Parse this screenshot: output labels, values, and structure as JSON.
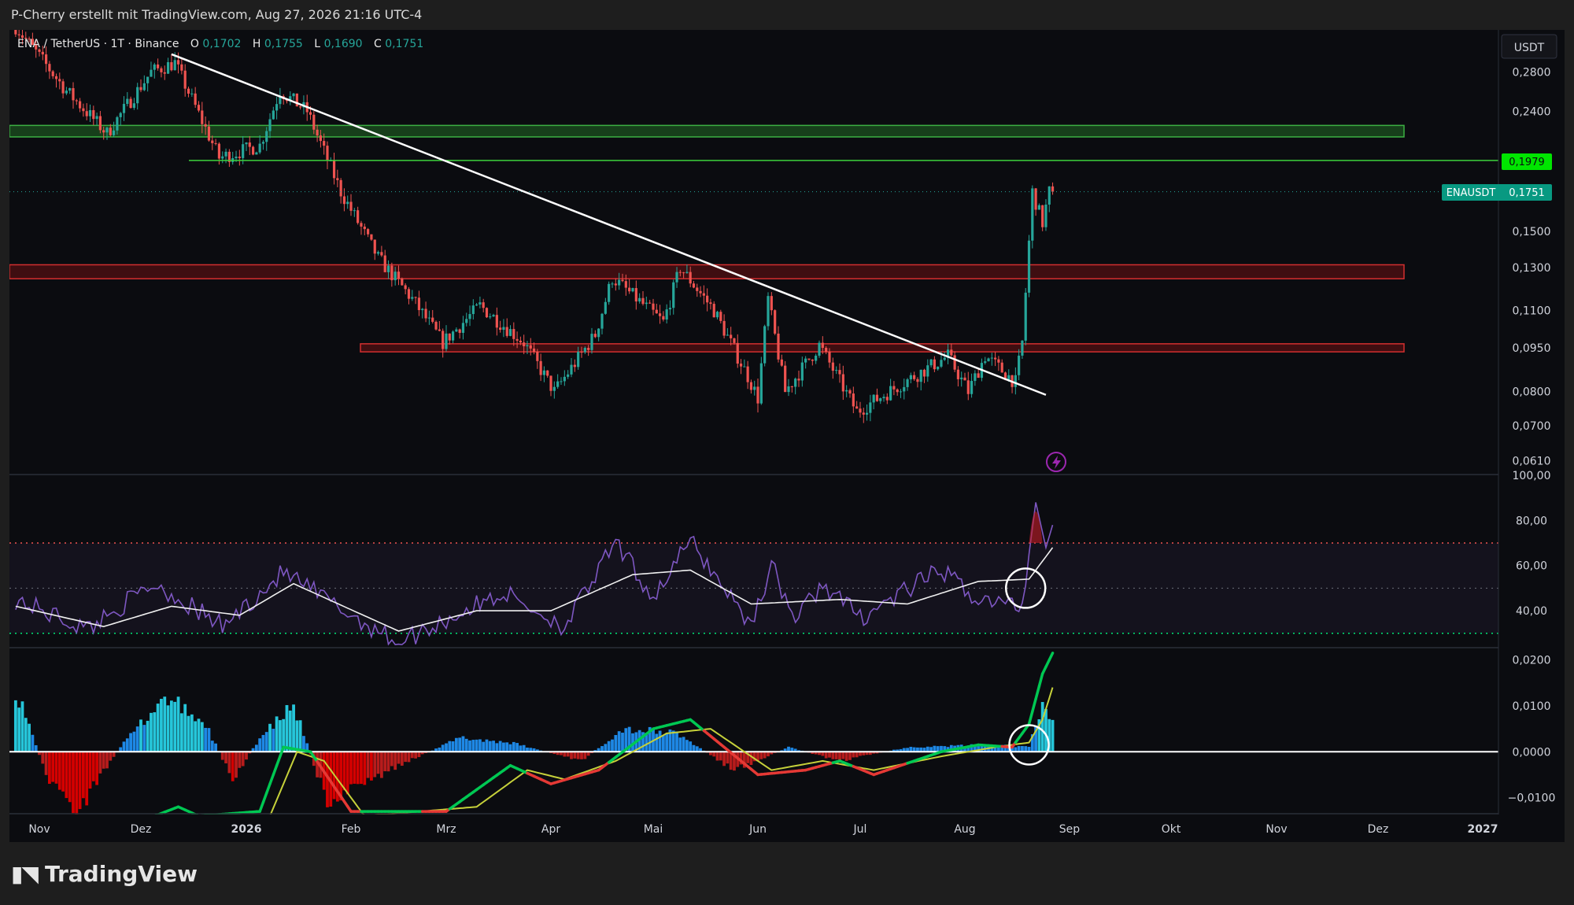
{
  "header": {
    "attribution": "P-Cherry erstellt mit TradingView.com, Aug 27, 2026 21:16 UTC-4"
  },
  "legend": {
    "symbol": "ENA / TetherUS · 1T · Binance",
    "open_label": "O",
    "open": "0,1702",
    "high_label": "H",
    "high": "0,1755",
    "low_label": "L",
    "low": "0,1690",
    "close_label": "C",
    "close": "0,1751"
  },
  "currency": "USDT",
  "colors": {
    "up": "#26a69a",
    "down": "#ef5350",
    "bg": "#0b0c10",
    "resistance_green": "#2e7d32",
    "resistance_red": "#b71c1c",
    "rsi": "#7e57c2",
    "macd_fast": "#00c853",
    "macd_slow": "#c6d13a"
  },
  "footer": {
    "brand": "TradingView",
    "logo_icon": "tradingview-logo-icon"
  },
  "chart_data": {
    "type": "candlestick",
    "symbol": "ENAUSDT",
    "exchange": "Binance",
    "timeframe": "1T",
    "x_axis_labels": [
      "Nov",
      "Dez",
      "2026",
      "Feb",
      "Mrz",
      "Apr",
      "Mai",
      "Jun",
      "Jul",
      "Aug",
      "Sep",
      "Okt",
      "Nov",
      "Dez",
      "2027"
    ],
    "price_axis": {
      "scale": "log",
      "ticks": [
        "0,2800",
        "0,2400",
        "0,1979",
        "0,1751",
        "0,1500",
        "0,1300",
        "0,1100",
        "0,0950",
        "0,0800",
        "0,0700",
        "0,0610"
      ],
      "tick_values": [
        0.28,
        0.24,
        0.1979,
        0.1751,
        0.15,
        0.13,
        0.11,
        0.095,
        0.08,
        0.07,
        0.061
      ],
      "range": [
        0.058,
        0.33
      ]
    },
    "price_labels": {
      "level": "0,1979",
      "last_name": "ENAUSDT",
      "last": "0,1751"
    },
    "zones": [
      {
        "type": "support-resistance",
        "color": "green",
        "low": 0.217,
        "high": 0.227
      },
      {
        "type": "support-resistance",
        "color": "red",
        "low": 0.1245,
        "high": 0.1315
      },
      {
        "type": "support-resistance",
        "color": "red",
        "low": 0.0935,
        "high": 0.0965
      }
    ],
    "horizontal_lines": [
      {
        "value": 0.1979,
        "color": "green"
      },
      {
        "value": 0.1751,
        "style": "dotted"
      }
    ],
    "trendline": {
      "from": {
        "date": "2025-12-10",
        "price": 0.3
      },
      "to": {
        "date": "2026-08-25",
        "price": 0.079
      }
    },
    "price_waypoints": [
      {
        "date": "2025-10-25",
        "price": 0.34
      },
      {
        "date": "2025-11-10",
        "price": 0.26
      },
      {
        "date": "2025-11-22",
        "price": 0.22
      },
      {
        "date": "2025-12-05",
        "price": 0.28
      },
      {
        "date": "2025-12-12",
        "price": 0.29
      },
      {
        "date": "2025-12-25",
        "price": 0.2
      },
      {
        "date": "2026-01-06",
        "price": 0.21
      },
      {
        "date": "2026-01-12",
        "price": 0.26
      },
      {
        "date": "2026-01-20",
        "price": 0.24
      },
      {
        "date": "2026-01-30",
        "price": 0.175
      },
      {
        "date": "2026-02-10",
        "price": 0.135
      },
      {
        "date": "2026-02-20",
        "price": 0.115
      },
      {
        "date": "2026-03-01",
        "price": 0.097
      },
      {
        "date": "2026-03-12",
        "price": 0.112
      },
      {
        "date": "2026-03-25",
        "price": 0.097
      },
      {
        "date": "2026-04-03",
        "price": 0.08
      },
      {
        "date": "2026-04-15",
        "price": 0.1
      },
      {
        "date": "2026-04-20",
        "price": 0.125
      },
      {
        "date": "2026-05-05",
        "price": 0.105
      },
      {
        "date": "2026-05-10",
        "price": 0.13
      },
      {
        "date": "2026-05-20",
        "price": 0.11
      },
      {
        "date": "2026-05-30",
        "price": 0.085
      },
      {
        "date": "2026-06-02",
        "price": 0.078
      },
      {
        "date": "2026-06-05",
        "price": 0.115
      },
      {
        "date": "2026-06-10",
        "price": 0.08
      },
      {
        "date": "2026-06-20",
        "price": 0.096
      },
      {
        "date": "2026-07-01",
        "price": 0.074
      },
      {
        "date": "2026-07-15",
        "price": 0.083
      },
      {
        "date": "2026-07-28",
        "price": 0.092
      },
      {
        "date": "2026-08-03",
        "price": 0.08
      },
      {
        "date": "2026-08-08",
        "price": 0.092
      },
      {
        "date": "2026-08-17",
        "price": 0.083
      },
      {
        "date": "2026-08-19",
        "price": 0.097
      },
      {
        "date": "2026-08-22",
        "price": 0.175
      },
      {
        "date": "2026-08-25",
        "price": 0.155
      },
      {
        "date": "2026-08-27",
        "price": 0.1751
      }
    ],
    "rsi": {
      "ticks": [
        "100,00",
        "80,00",
        "60,00",
        "40,00"
      ],
      "tick_values": [
        100,
        80,
        60,
        40
      ],
      "range": [
        24,
        100
      ],
      "overbought": 70,
      "middle": 50,
      "oversold": 30,
      "waypoints": [
        {
          "date": "2025-10-25",
          "rsi": 45
        },
        {
          "date": "2025-11-15",
          "rsi": 32
        },
        {
          "date": "2025-12-05",
          "rsi": 52
        },
        {
          "date": "2025-12-25",
          "rsi": 33
        },
        {
          "date": "2026-01-12",
          "rsi": 57
        },
        {
          "date": "2026-02-01",
          "rsi": 38
        },
        {
          "date": "2026-02-15",
          "rsi": 26
        },
        {
          "date": "2026-03-01",
          "rsi": 36
        },
        {
          "date": "2026-03-18",
          "rsi": 48
        },
        {
          "date": "2026-04-05",
          "rsi": 33
        },
        {
          "date": "2026-04-20",
          "rsi": 70
        },
        {
          "date": "2026-05-01",
          "rsi": 46
        },
        {
          "date": "2026-05-12",
          "rsi": 71
        },
        {
          "date": "2026-05-30",
          "rsi": 34
        },
        {
          "date": "2026-06-05",
          "rsi": 60
        },
        {
          "date": "2026-06-12",
          "rsi": 36
        },
        {
          "date": "2026-06-20",
          "rsi": 52
        },
        {
          "date": "2026-07-01",
          "rsi": 37
        },
        {
          "date": "2026-07-25",
          "rsi": 58
        },
        {
          "date": "2026-08-05",
          "rsi": 45
        },
        {
          "date": "2026-08-18",
          "rsi": 42
        },
        {
          "date": "2026-08-22",
          "rsi": 88
        },
        {
          "date": "2026-08-25",
          "rsi": 68
        },
        {
          "date": "2026-08-27",
          "rsi": 78
        }
      ],
      "ma_waypoints": [
        {
          "date": "2025-10-25",
          "rsi": 42
        },
        {
          "date": "2025-11-20",
          "rsi": 33
        },
        {
          "date": "2025-12-10",
          "rsi": 42
        },
        {
          "date": "2025-12-30",
          "rsi": 38
        },
        {
          "date": "2026-01-15",
          "rsi": 52
        },
        {
          "date": "2026-02-15",
          "rsi": 31
        },
        {
          "date": "2026-03-10",
          "rsi": 40
        },
        {
          "date": "2026-04-01",
          "rsi": 40
        },
        {
          "date": "2026-04-25",
          "rsi": 56
        },
        {
          "date": "2026-05-12",
          "rsi": 58
        },
        {
          "date": "2026-05-30",
          "rsi": 43
        },
        {
          "date": "2026-06-25",
          "rsi": 45
        },
        {
          "date": "2026-07-15",
          "rsi": 43
        },
        {
          "date": "2026-08-05",
          "rsi": 53
        },
        {
          "date": "2026-08-20",
          "rsi": 54
        },
        {
          "date": "2026-08-27",
          "rsi": 68
        }
      ]
    },
    "macd": {
      "ticks": [
        "0,0200",
        "0,0100",
        "0,0000",
        "−0,0100"
      ],
      "tick_values": [
        0.02,
        0.01,
        0,
        -0.01
      ],
      "range": [
        -0.0135,
        0.0225
      ],
      "histogram_waypoints": [
        {
          "date": "2025-10-25",
          "v": 0.014
        },
        {
          "date": "2025-11-03",
          "v": -0.005
        },
        {
          "date": "2025-11-12",
          "v": -0.013
        },
        {
          "date": "2025-11-25",
          "v": 0.001
        },
        {
          "date": "2025-12-08",
          "v": 0.012
        },
        {
          "date": "2025-12-20",
          "v": 0.006
        },
        {
          "date": "2025-12-28",
          "v": -0.006
        },
        {
          "date": "2026-01-05",
          "v": 0.003
        },
        {
          "date": "2026-01-15",
          "v": 0.01
        },
        {
          "date": "2026-01-25",
          "v": -0.011
        },
        {
          "date": "2026-02-15",
          "v": -0.003
        },
        {
          "date": "2026-03-05",
          "v": 0.003
        },
        {
          "date": "2026-03-20",
          "v": 0.002
        },
        {
          "date": "2026-04-10",
          "v": -0.002
        },
        {
          "date": "2026-04-22",
          "v": 0.005
        },
        {
          "date": "2026-05-08",
          "v": 0.004
        },
        {
          "date": "2026-05-25",
          "v": -0.004
        },
        {
          "date": "2026-06-10",
          "v": 0.001
        },
        {
          "date": "2026-06-25",
          "v": -0.002
        },
        {
          "date": "2026-07-15",
          "v": 0.001
        },
        {
          "date": "2026-08-10",
          "v": 0.0015
        },
        {
          "date": "2026-08-20",
          "v": 0.001
        },
        {
          "date": "2026-08-24",
          "v": 0.01
        },
        {
          "date": "2026-08-27",
          "v": 0.007
        }
      ],
      "macd_waypoints": [
        {
          "date": "2025-12-05",
          "v": -0.014
        },
        {
          "date": "2025-12-12",
          "v": -0.012
        },
        {
          "date": "2025-12-18",
          "v": -0.014
        },
        {
          "date": "2026-01-05",
          "v": -0.013
        },
        {
          "date": "2026-01-12",
          "v": 0.001
        },
        {
          "date": "2026-01-20",
          "v": 0.0
        },
        {
          "date": "2026-02-01",
          "v": -0.013
        },
        {
          "date": "2026-03-01",
          "v": -0.013
        },
        {
          "date": "2026-03-20",
          "v": -0.003
        },
        {
          "date": "2026-04-01",
          "v": -0.007
        },
        {
          "date": "2026-04-15",
          "v": -0.004
        },
        {
          "date": "2026-05-01",
          "v": 0.005
        },
        {
          "date": "2026-05-12",
          "v": 0.007
        },
        {
          "date": "2026-06-01",
          "v": -0.005
        },
        {
          "date": "2026-06-15",
          "v": -0.004
        },
        {
          "date": "2026-06-25",
          "v": -0.002
        },
        {
          "date": "2026-07-05",
          "v": -0.005
        },
        {
          "date": "2026-07-25",
          "v": 0.0
        },
        {
          "date": "2026-08-05",
          "v": 0.0015
        },
        {
          "date": "2026-08-15",
          "v": 0.001
        },
        {
          "date": "2026-08-20",
          "v": 0.006
        },
        {
          "date": "2026-08-24",
          "v": 0.017
        },
        {
          "date": "2026-08-27",
          "v": 0.0215
        }
      ],
      "signal_waypoints": [
        {
          "date": "2026-01-08",
          "v": -0.014
        },
        {
          "date": "2026-01-16",
          "v": 0.0
        },
        {
          "date": "2026-01-24",
          "v": -0.002
        },
        {
          "date": "2026-02-05",
          "v": -0.014
        },
        {
          "date": "2026-03-10",
          "v": -0.012
        },
        {
          "date": "2026-03-25",
          "v": -0.004
        },
        {
          "date": "2026-04-05",
          "v": -0.006
        },
        {
          "date": "2026-04-20",
          "v": -0.002
        },
        {
          "date": "2026-05-05",
          "v": 0.004
        },
        {
          "date": "2026-05-18",
          "v": 0.005
        },
        {
          "date": "2026-06-05",
          "v": -0.004
        },
        {
          "date": "2026-06-20",
          "v": -0.002
        },
        {
          "date": "2026-07-05",
          "v": -0.004
        },
        {
          "date": "2026-07-25",
          "v": -0.001
        },
        {
          "date": "2026-08-10",
          "v": 0.001
        },
        {
          "date": "2026-08-20",
          "v": 0.002
        },
        {
          "date": "2026-08-24",
          "v": 0.007
        },
        {
          "date": "2026-08-27",
          "v": 0.014
        }
      ]
    },
    "highlight_circles": [
      {
        "panel": "rsi",
        "date": "2026-08-19",
        "value": 50
      },
      {
        "panel": "macd",
        "date": "2026-08-20",
        "value": 0.0015
      }
    ]
  }
}
